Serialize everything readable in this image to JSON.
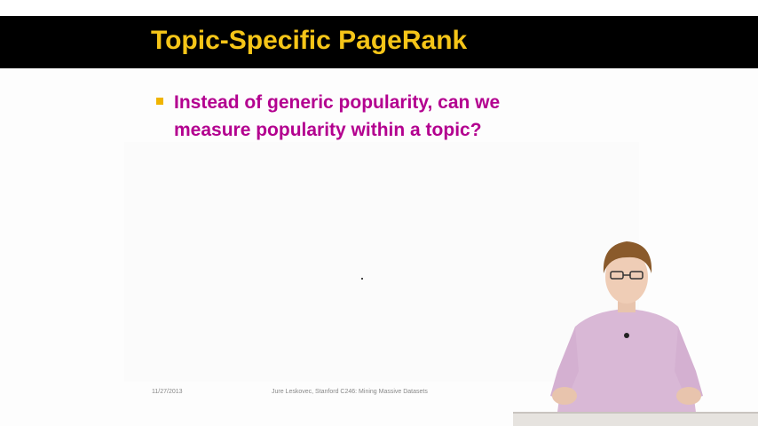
{
  "slide": {
    "title": "Topic-Specific PageRank",
    "bullets": [
      "Instead of generic popularity, can we measure popularity within a topic?"
    ],
    "footer_date": "11/27/2013",
    "footer_credit": "Jure Leskovec, Stanford C246: Mining Massive Datasets"
  },
  "colors": {
    "title_bar": "#000000",
    "title_text": "#f5c518",
    "bullet_text": "#b3008f",
    "bullet_mark": "#f0b400"
  }
}
